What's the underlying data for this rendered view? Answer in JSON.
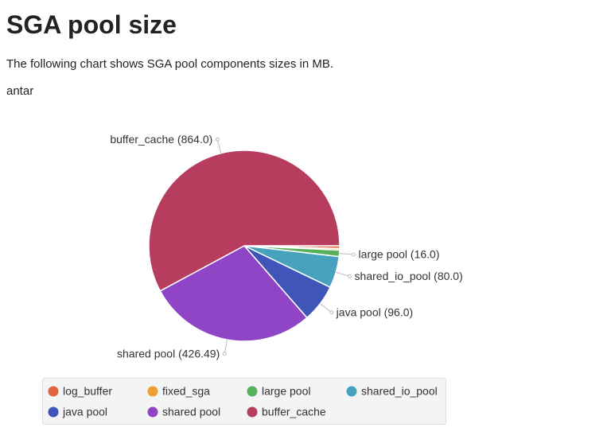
{
  "header": {
    "title": "SGA pool size",
    "description": "The following chart shows SGA pool components sizes in MB.",
    "subtitle": "antar"
  },
  "chart_data": {
    "type": "pie",
    "categories": [
      "log_buffer",
      "fixed_sga",
      "large pool",
      "shared_io_pool",
      "java pool",
      "shared pool",
      "buffer_cache"
    ],
    "values": [
      7,
      4,
      16,
      80,
      96,
      426.49,
      864
    ],
    "value_labels": [
      null,
      null,
      "large pool (16.0)",
      "shared_io_pool (80.0)",
      "java pool (96.0)",
      "shared pool (426.49)",
      "buffer_cache (864.0)"
    ],
    "colors": [
      "#e2643c",
      "#eea032",
      "#57b05a",
      "#47a2bd",
      "#3f55b8",
      "#8f45c6",
      "#b73d5e"
    ],
    "legend": true
  }
}
